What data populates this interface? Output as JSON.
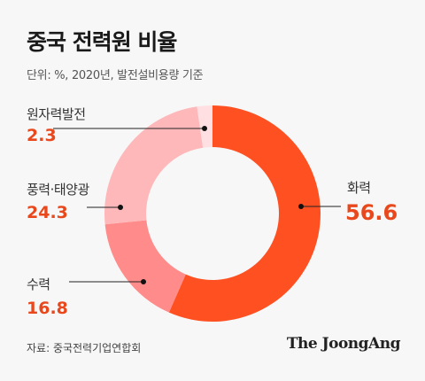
{
  "title": "중국 전력원 비율",
  "subtitle": "단위: %, 2020년, 발전설비용량 기준",
  "source": "자료: 중국전력기업연합회",
  "brand": "The JoongAng",
  "colors": {
    "accent": "#e8481c",
    "slice_fire": "#ff5022",
    "slice_water": "#ff8c8a",
    "slice_wind_solar": "#ffb8ba",
    "slice_nuclear": "#ffdfe1"
  },
  "chart_data": {
    "type": "pie",
    "donut": true,
    "categories": [
      "화력",
      "수력",
      "풍력·태양광",
      "원자력발전"
    ],
    "values": [
      56.6,
      16.8,
      24.3,
      2.3
    ],
    "value_labels": [
      "56.6",
      "16.8",
      "24.3",
      "2.3"
    ],
    "colors": [
      "#ff5022",
      "#ff8c8a",
      "#ffb8ba",
      "#ffdfe1"
    ],
    "start": "12 o'clock",
    "direction": "clockwise",
    "title": "중국 전력원 비율",
    "subtitle": "단위: %, 2020년, 발전설비용량 기준"
  }
}
